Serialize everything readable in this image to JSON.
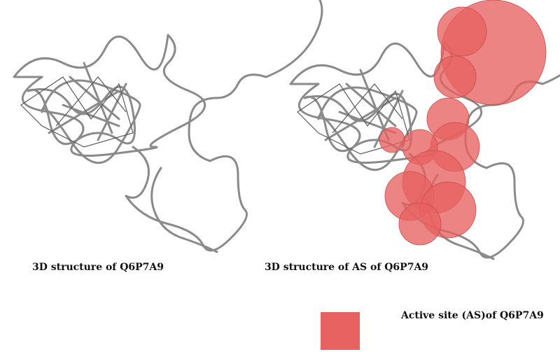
{
  "panels": [
    {
      "caption": "3D structure of Q6P7A9"
    },
    {
      "caption": "3D structure of AS of Q6P7A9"
    }
  ],
  "legend": {
    "label": "Active site (AS)of Q6P7A9"
  }
}
